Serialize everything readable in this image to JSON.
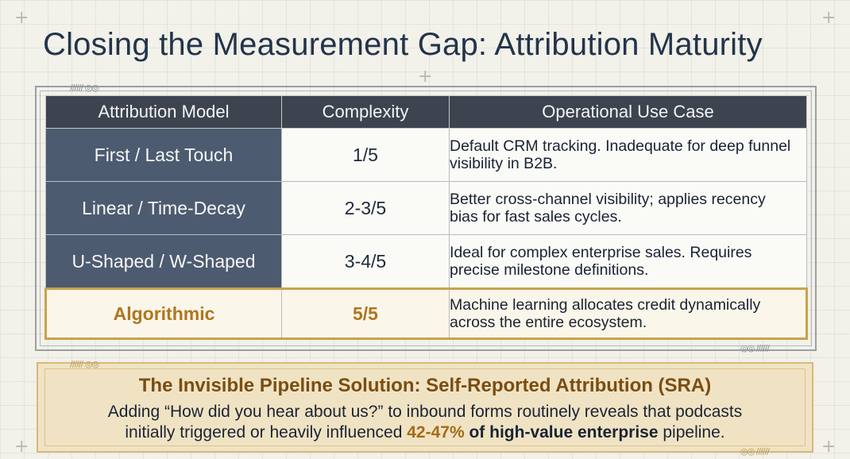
{
  "title": "Closing the Measurement Gap: Attribution Maturity",
  "table": {
    "headers": [
      "Attribution Model",
      "Complexity",
      "Operational Use Case"
    ],
    "rows": [
      {
        "model": "First / Last Touch",
        "complexity": "1/5",
        "use_case_line1": "Default CRM tracking. Inadequate for deep funnel",
        "use_case_line2": "visibility in B2B."
      },
      {
        "model": "Linear / Time-Decay",
        "complexity": "2-3/5",
        "use_case_line1": "Better cross-channel visibility; applies recency",
        "use_case_line2": "bias for fast sales cycles."
      },
      {
        "model": "U-Shaped / W-Shaped",
        "complexity": "3-4/5",
        "use_case_line1": "Ideal for complex enterprise sales. Requires",
        "use_case_line2": "precise milestone definitions."
      },
      {
        "model": "Algorithmic",
        "complexity": "5/5",
        "use_case_line1": "Machine learning allocates credit dynamically",
        "use_case_line2": "across the entire ecosystem."
      }
    ]
  },
  "callout": {
    "title": "The Invisible Pipeline Solution: Self-Reported Attribution (SRA)",
    "line1": "Adding “How did you hear about us?” to inbound forms routinely reveals that podcasts",
    "line2_pre": "initially triggered or heavily influenced ",
    "line2_pct": "42-47%",
    "line2_strong": " of high-value enterprise",
    "line2_post": " pipeline."
  },
  "colors": {
    "header_bg": "#3d4450",
    "model_bg": "#4d5b70",
    "highlight_gold": "#c9a24f",
    "callout_bg": "#f0e3c4"
  }
}
